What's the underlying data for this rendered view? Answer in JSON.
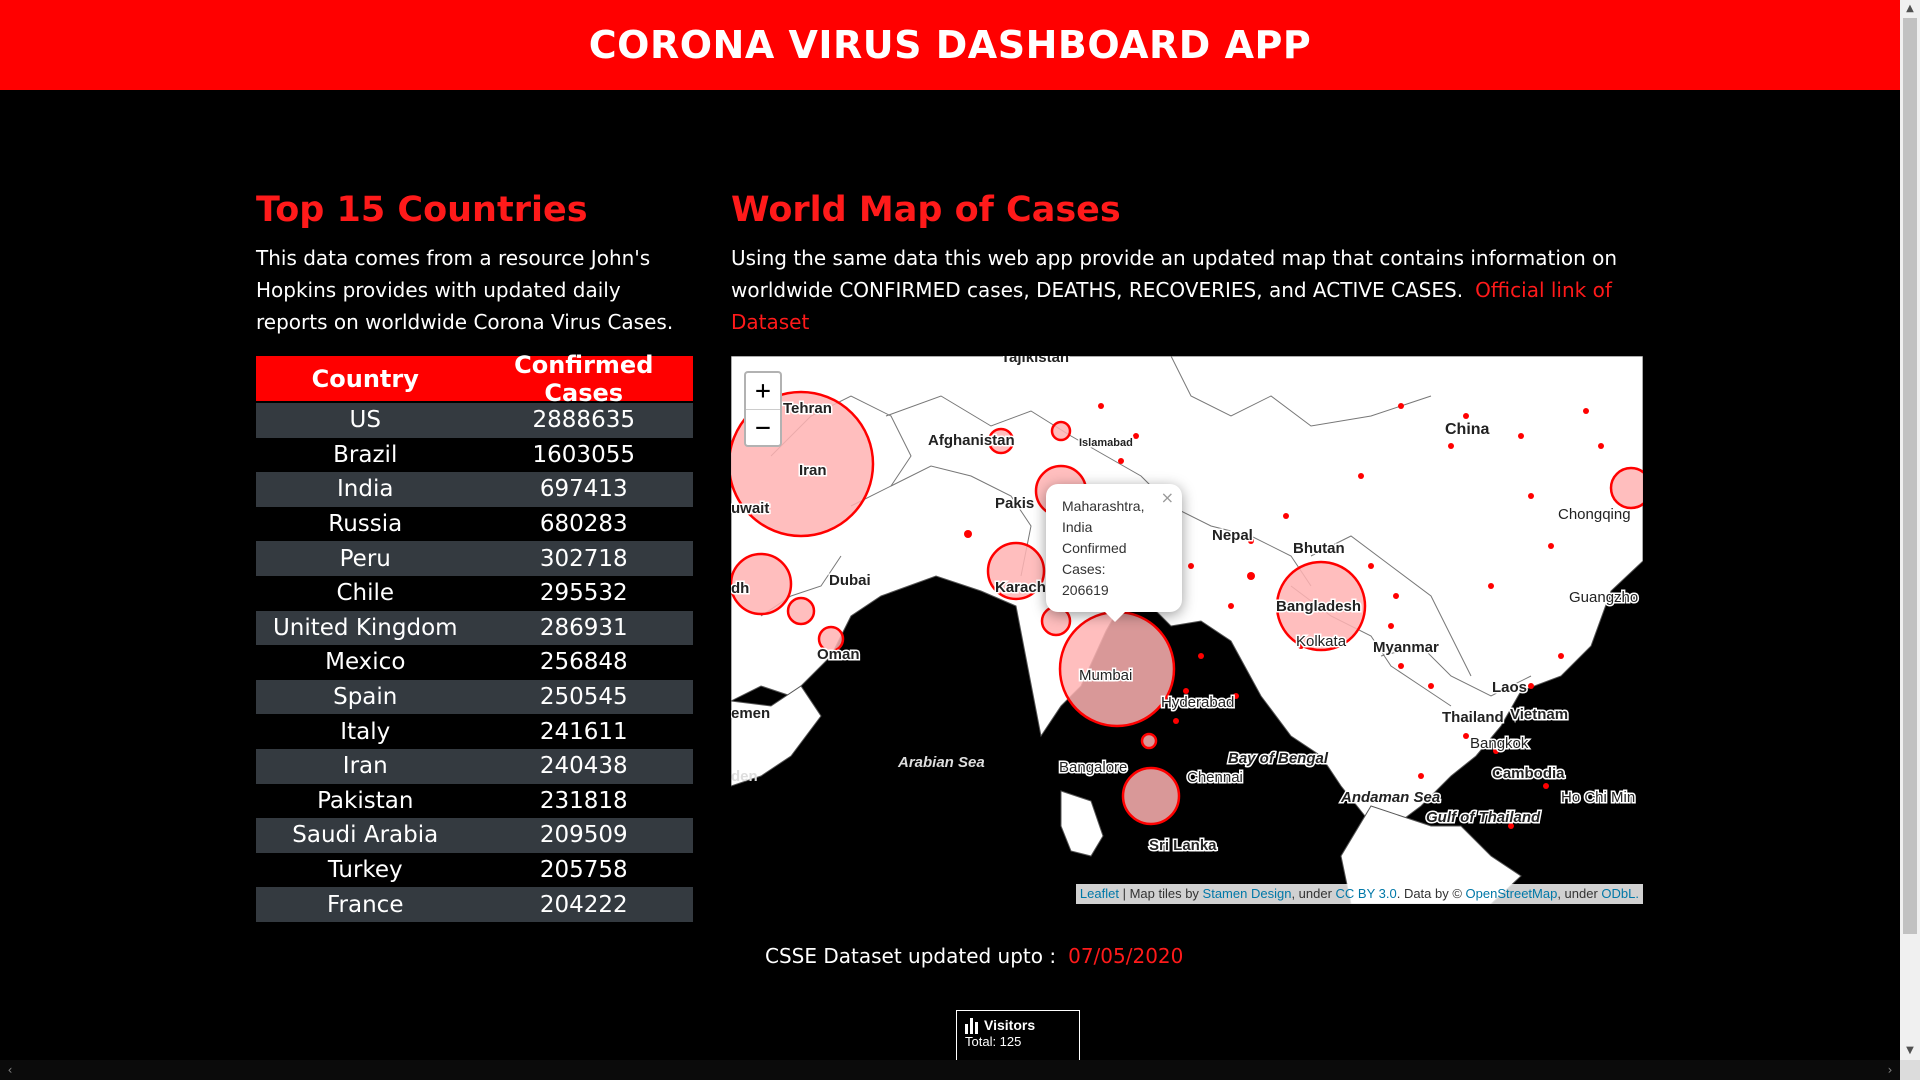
{
  "header": {
    "title": "CORONA VIRUS DASHBOARD APP"
  },
  "top15": {
    "title": "Top 15 Countries",
    "description": "This data comes from a resource John's Hopkins provides with updated daily reports on worldwide Corona Virus Cases.",
    "columns": [
      "Country",
      "Confirmed Cases"
    ],
    "rows": [
      {
        "country": "US",
        "cases": "2888635"
      },
      {
        "country": "Brazil",
        "cases": "1603055"
      },
      {
        "country": "India",
        "cases": "697413"
      },
      {
        "country": "Russia",
        "cases": "680283"
      },
      {
        "country": "Peru",
        "cases": "302718"
      },
      {
        "country": "Chile",
        "cases": "295532"
      },
      {
        "country": "United Kingdom",
        "cases": "286931"
      },
      {
        "country": "Mexico",
        "cases": "256848"
      },
      {
        "country": "Spain",
        "cases": "250545"
      },
      {
        "country": "Italy",
        "cases": "241611"
      },
      {
        "country": "Iran",
        "cases": "240438"
      },
      {
        "country": "Pakistan",
        "cases": "231818"
      },
      {
        "country": "Saudi Arabia",
        "cases": "209509"
      },
      {
        "country": "Turkey",
        "cases": "205758"
      },
      {
        "country": "France",
        "cases": "204222"
      }
    ]
  },
  "worldmap": {
    "title": "World Map of Cases",
    "description": "Using the same data this web app provide an updated map that contains information on worldwide CONFIRMED cases, DEATHS, RECOVERIES, and ACTIVE CASES.",
    "dataset_link": "Official link of Dataset",
    "zoom_in": "+",
    "zoom_out": "−",
    "popup": {
      "lines": [
        "Maharashtra,",
        "India",
        "Confirmed",
        "Cases:",
        "206619"
      ],
      "close": "×"
    },
    "labels": {
      "tajikistan": "Tajikistan",
      "tehran": "Tehran",
      "iran": "Iran",
      "afghanistan": "Afghanistan",
      "islamabad": "Islamabad",
      "china": "China",
      "pakistan": "Pakis",
      "kuwait": "uwait",
      "dubai": "Dubai",
      "karachi": "Karach",
      "nepal": "Nepal",
      "bhutan": "Bhutan",
      "chongqing": "Chongqing",
      "bangladesh": "Bangladesh",
      "kolkata": "Kolkata",
      "guangzhou": "Guangzho",
      "myanmar": "Myanmar",
      "oman": "Oman",
      "mumbai": "Mumbai",
      "laos": "Laos",
      "hyderabad": "Hyderabad",
      "thailand": "Thailand",
      "vietnam": "Vietnam",
      "yemen": "emen",
      "bangkok": "Bangkok",
      "bay_of_bengal": "Bay of Bengal",
      "arabian_sea": "Arabian Sea",
      "aden": "den",
      "bangalore": "Bangalore",
      "chennai": "Chennai",
      "cambodia": "Cambodia",
      "andaman_sea": "Andaman Sea",
      "ho_chi_minh": "Ho Chi Min",
      "gulf_of_thailand": "Gulf of Thailand",
      "sri_lanka": "Sri Lanka",
      "riyadh": "dh"
    },
    "attribution": {
      "leaflet": "Leaflet",
      "tiles_prefix": " | Map tiles by ",
      "stamen": "Stamen Design",
      "under1": ", under ",
      "ccby": "CC BY 3.0",
      "data_by": ". Data by © ",
      "osm": "OpenStreetMap",
      "under2": ", under ",
      "odbl": "ODbL."
    },
    "colors": {
      "marker": "#ff0000",
      "marker_fill": "#ffb3b3",
      "land": "#ffffff",
      "water": "#000000"
    }
  },
  "updated": {
    "label": "CSSE Dataset updated upto :",
    "date": "07/05/2020"
  },
  "visitors": {
    "icon": "bar-chart-icon",
    "title": "Visitors",
    "total": "Total: 125"
  }
}
